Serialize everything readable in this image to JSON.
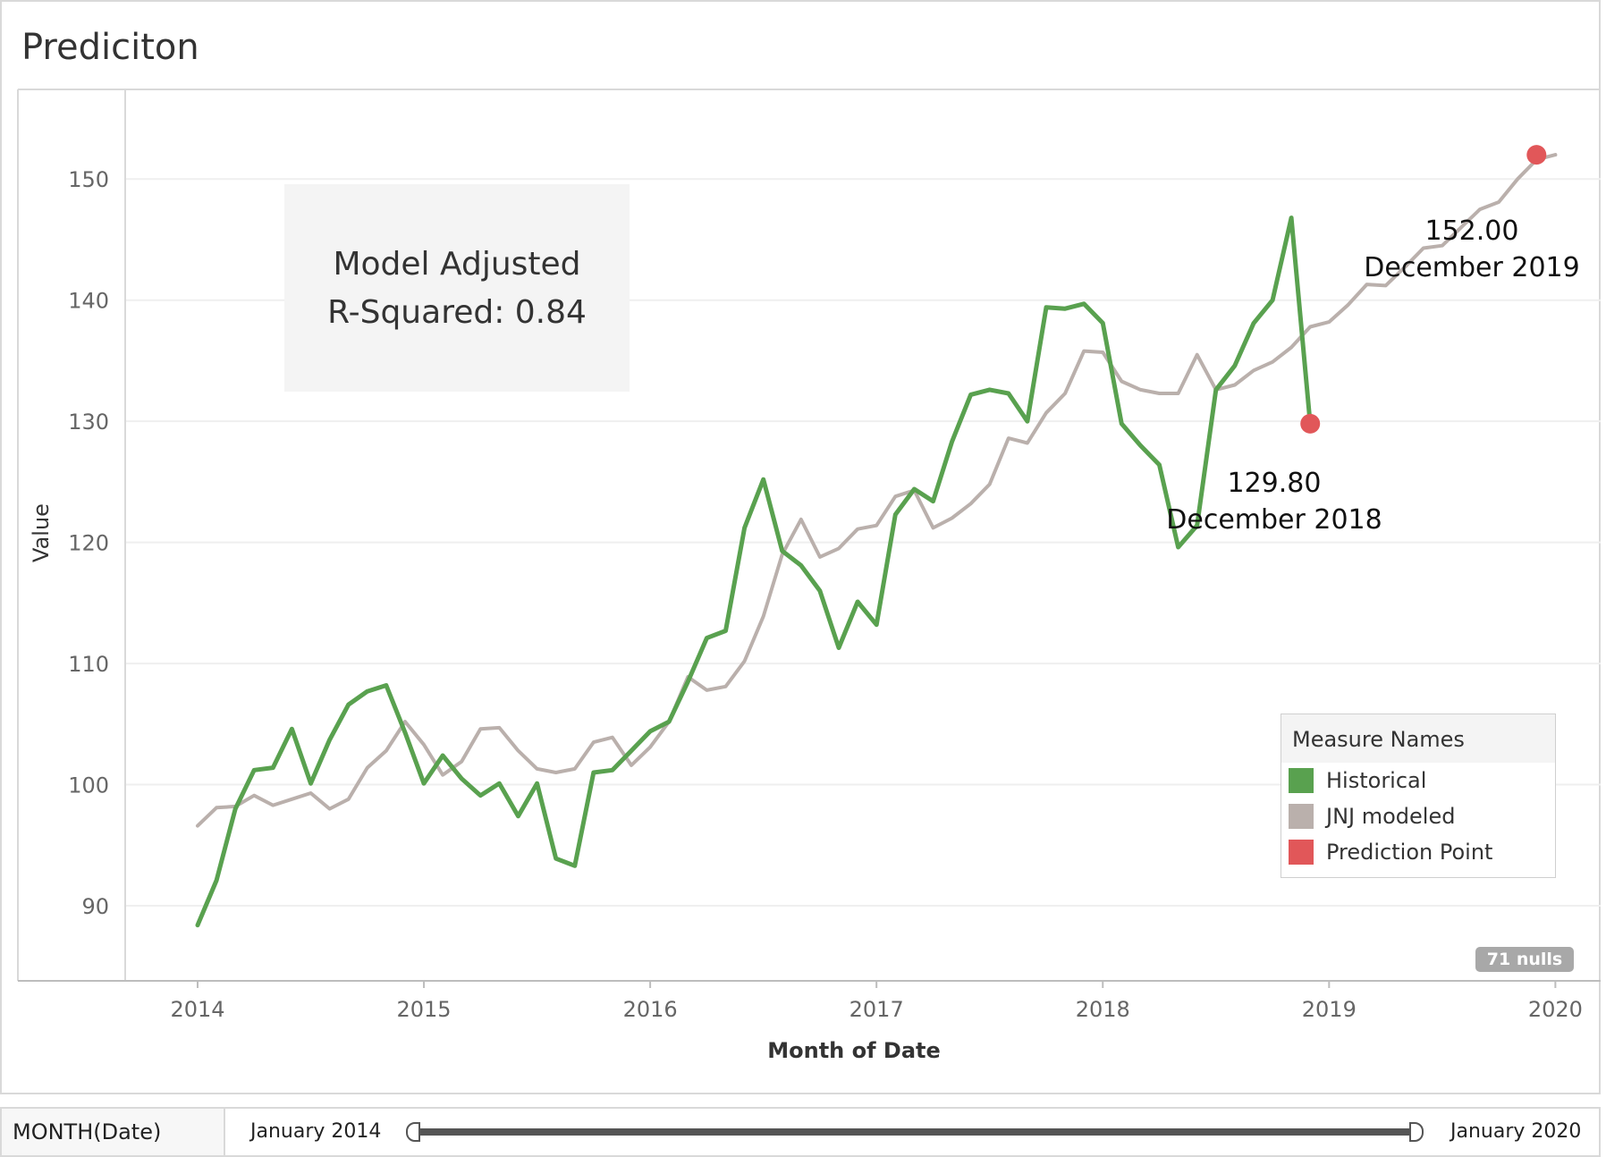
{
  "title": "Prediciton",
  "chart_data": {
    "type": "line",
    "title": "Prediciton",
    "xlabel": "Month of Date",
    "ylabel": "Value",
    "x_ticks": [
      "2014",
      "2015",
      "2016",
      "2017",
      "2018",
      "2019",
      "2020"
    ],
    "y_ticks": [
      90,
      100,
      110,
      120,
      130,
      140,
      150
    ],
    "ylim": [
      83.8,
      157.4
    ],
    "xlim": [
      2013.68,
      2020.2
    ],
    "grid": "horizontal",
    "legend_position": "bottom-right",
    "series": [
      {
        "name": "Historical",
        "color": "#59a14f",
        "start": "2014-01",
        "values": [
          88.4,
          92.1,
          98.0,
          101.2,
          101.4,
          104.6,
          100.1,
          103.7,
          106.6,
          107.7,
          108.2,
          104.3,
          100.1,
          102.4,
          100.5,
          99.1,
          100.1,
          97.4,
          100.1,
          93.9,
          93.3,
          101.0,
          101.2,
          102.8,
          104.4,
          105.2,
          108.5,
          112.1,
          112.7,
          121.2,
          125.2,
          119.3,
          118.1,
          116.0,
          111.3,
          115.1,
          113.2,
          122.3,
          124.4,
          123.4,
          128.3,
          132.2,
          132.6,
          132.3,
          130.0,
          139.4,
          139.3,
          139.7,
          138.1,
          129.8,
          128.0,
          126.4,
          119.6,
          121.4,
          132.6,
          134.6,
          138.1,
          140.0,
          146.8,
          129.8
        ]
      },
      {
        "name": "JNJ modeled",
        "color": "#bab0ac",
        "start": "2014-01",
        "values": [
          96.6,
          98.1,
          98.2,
          99.1,
          98.3,
          98.8,
          99.3,
          98.0,
          98.8,
          101.4,
          102.8,
          105.2,
          103.3,
          100.8,
          101.9,
          104.6,
          104.7,
          102.8,
          101.3,
          101.0,
          101.3,
          103.5,
          103.9,
          101.6,
          103.1,
          105.2,
          108.9,
          107.8,
          108.1,
          110.2,
          113.9,
          119.0,
          121.9,
          118.8,
          119.5,
          121.1,
          121.4,
          123.8,
          124.3,
          121.2,
          122.0,
          123.2,
          124.8,
          128.6,
          128.2,
          130.7,
          132.3,
          135.8,
          135.7,
          133.3,
          132.6,
          132.3,
          132.3,
          135.5,
          132.6,
          133.0,
          134.2,
          134.9,
          136.1,
          137.8,
          138.2,
          139.6,
          141.3,
          141.2,
          142.7,
          144.3,
          144.5,
          146.0,
          147.5,
          148.1,
          150.0,
          151.6,
          152.0
        ]
      },
      {
        "name": "Prediction Point",
        "color": "#e15759",
        "points": [
          {
            "date": "2018-12",
            "value": 129.8
          },
          {
            "date": "2019-12",
            "value": 152.0
          }
        ]
      }
    ],
    "annotations": [
      {
        "value_label": "129.80",
        "date_label": "December 2018"
      },
      {
        "value_label": "152.00",
        "date_label": "December 2019"
      }
    ],
    "note": {
      "line1": "Model Adjusted",
      "line2": "R-Squared: 0.84"
    },
    "nulls_badge": "71 nulls"
  },
  "legend": {
    "title": "Measure Names",
    "items": [
      {
        "label": "Historical",
        "color": "#59a14f"
      },
      {
        "label": "JNJ modeled",
        "color": "#bab0ac"
      },
      {
        "label": "Prediction Point",
        "color": "#e15759"
      }
    ]
  },
  "filter": {
    "label": "MONTH(Date)",
    "start": "January 2014",
    "end": "January 2020"
  }
}
